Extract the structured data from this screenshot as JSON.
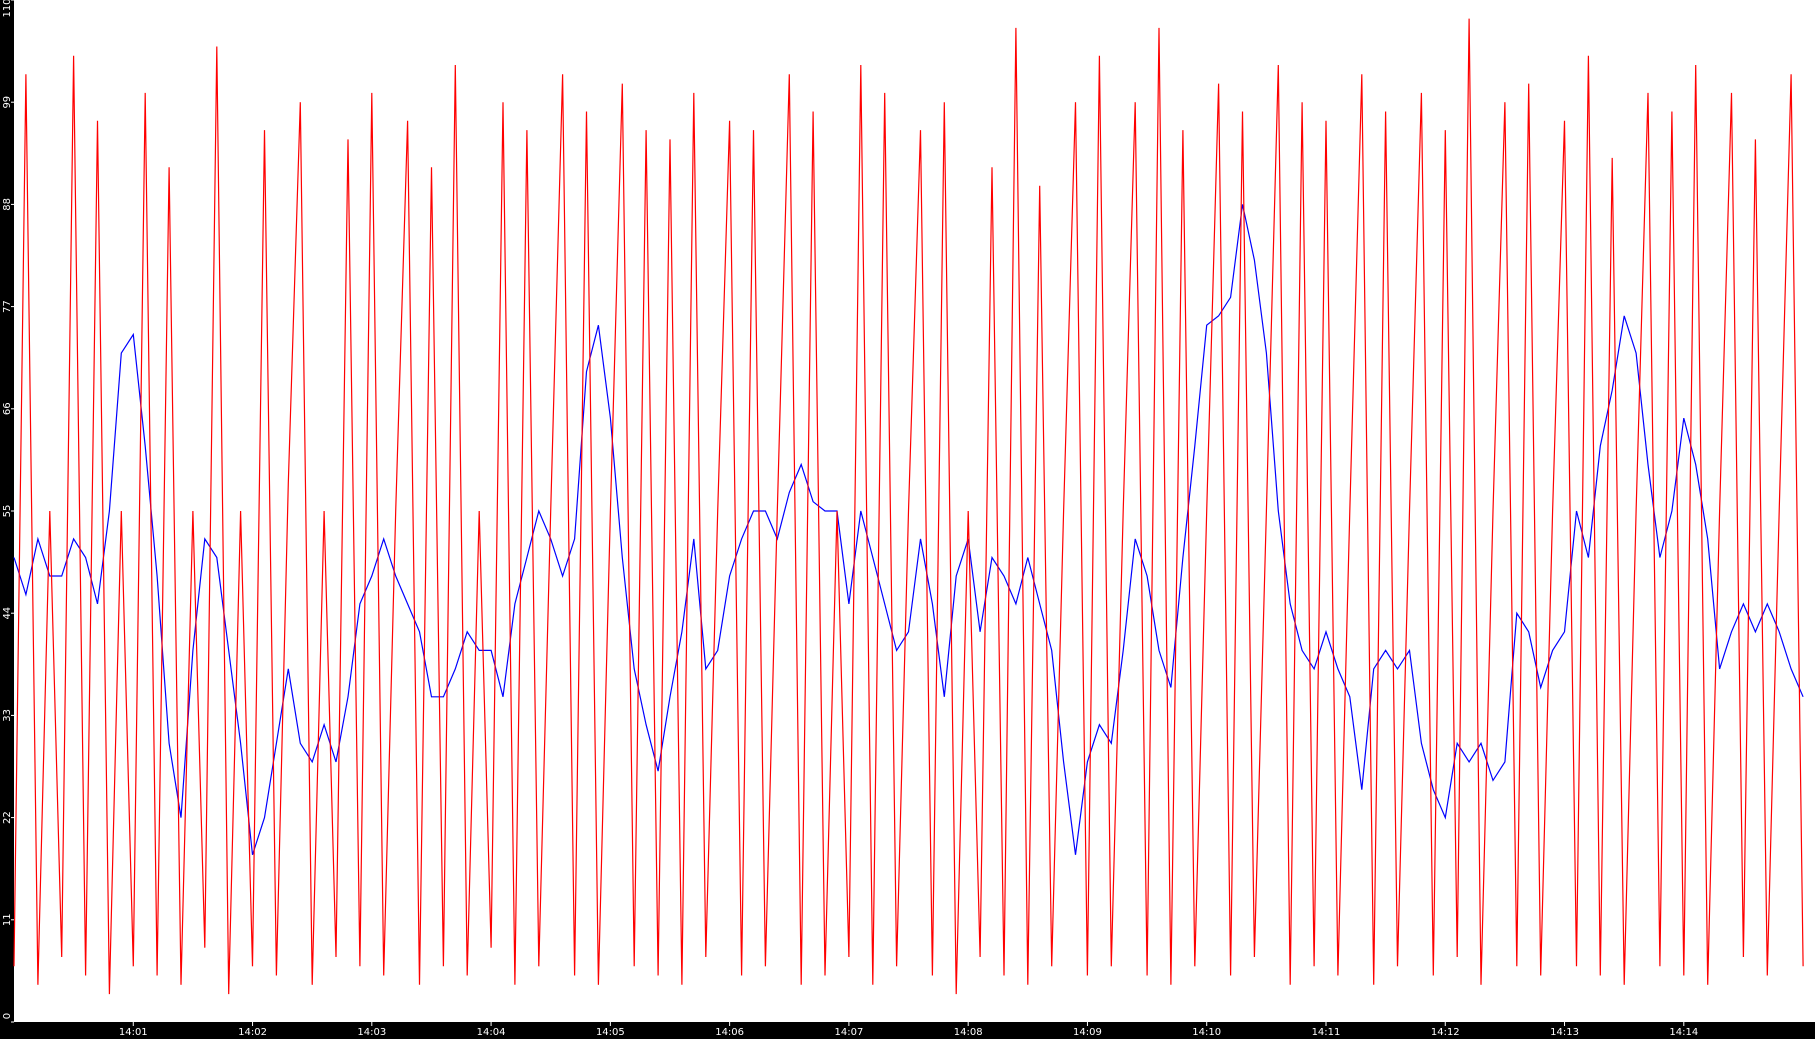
{
  "chart_data": {
    "type": "line",
    "x": [
      0,
      0.1,
      0.2,
      0.3,
      0.4,
      0.5,
      0.6,
      0.7,
      0.8,
      0.9,
      1,
      1.1,
      1.2,
      1.3,
      1.4,
      1.5,
      1.6,
      1.7,
      1.8,
      1.9,
      2,
      2.1,
      2.2,
      2.3,
      2.4,
      2.5,
      2.6,
      2.7,
      2.8,
      2.9,
      3,
      3.1,
      3.2,
      3.3,
      3.4,
      3.5,
      3.6,
      3.7,
      3.8,
      3.9,
      4,
      4.1,
      4.2,
      4.3,
      4.4,
      4.5,
      4.6,
      4.7,
      4.8,
      4.9,
      5,
      5.1,
      5.2,
      5.3,
      5.4,
      5.5,
      5.6,
      5.7,
      5.8,
      5.9,
      6,
      6.1,
      6.2,
      6.3,
      6.4,
      6.5,
      6.6,
      6.7,
      6.8,
      6.9,
      7,
      7.1,
      7.2,
      7.3,
      7.4,
      7.5,
      7.6,
      7.7,
      7.8,
      7.9,
      8,
      8.1,
      8.2,
      8.3,
      8.4,
      8.5,
      8.6,
      8.7,
      8.8,
      8.9,
      9,
      9.1,
      9.2,
      9.3,
      9.4,
      9.5,
      9.6,
      9.7,
      9.8,
      9.9,
      10,
      10.1,
      10.2,
      10.3,
      10.4,
      10.5,
      10.6,
      10.7,
      10.8,
      10.9,
      11,
      11.1,
      11.2,
      11.3,
      11.4,
      11.5,
      11.6,
      11.7,
      11.8,
      11.9,
      12,
      12.1,
      12.2,
      12.3,
      12.4,
      12.5,
      12.6,
      12.7,
      12.8,
      12.9,
      13,
      13.1,
      13.2,
      13.3,
      13.4,
      13.5,
      13.6,
      13.7,
      13.8,
      13.9,
      14,
      14.1,
      14.2,
      14.3,
      14.4,
      14.5,
      14.6,
      14.7,
      14.8,
      14.9,
      15
    ],
    "series": [
      {
        "color": "#0000ff",
        "values": [
          50,
          46,
          52,
          48,
          48,
          52,
          50,
          45,
          55,
          72,
          74,
          62,
          48,
          30,
          22,
          40,
          52,
          50,
          40,
          30,
          18,
          22,
          30,
          38,
          30,
          28,
          32,
          28,
          35,
          45,
          48,
          52,
          48,
          45,
          42,
          35,
          35,
          38,
          42,
          40,
          40,
          35,
          45,
          50,
          55,
          52,
          48,
          52,
          70,
          75,
          65,
          50,
          38,
          32,
          27,
          35,
          42,
          52,
          38,
          40,
          48,
          52,
          55,
          55,
          52,
          57,
          60,
          56,
          55,
          55,
          45,
          55,
          50,
          45,
          40,
          42,
          52,
          45,
          35,
          48,
          52,
          42,
          50,
          48,
          45,
          50,
          45,
          40,
          28,
          18,
          28,
          32,
          30,
          40,
          52,
          48,
          40,
          36,
          50,
          62,
          75,
          76,
          78,
          88,
          82,
          72,
          55,
          45,
          40,
          38,
          42,
          38,
          35,
          25,
          38,
          40,
          38,
          40,
          30,
          25,
          22,
          30,
          28,
          30,
          26,
          28,
          44,
          42,
          36,
          40,
          42,
          55,
          50,
          62,
          68,
          76,
          72,
          60,
          50,
          55,
          65,
          60,
          52,
          38,
          42,
          45,
          42,
          45,
          42,
          38,
          35
        ]
      },
      {
        "color": "#ff0000",
        "values": [
          6,
          102,
          4,
          55,
          7,
          104,
          5,
          97,
          3,
          55,
          6,
          100,
          5,
          92,
          4,
          55,
          8,
          105,
          3,
          55,
          6,
          96,
          5,
          58,
          99,
          4,
          55,
          7,
          95,
          6,
          100,
          5,
          55,
          97,
          4,
          92,
          6,
          103,
          5,
          55,
          8,
          99,
          4,
          96,
          6,
          55,
          102,
          5,
          98,
          4,
          55,
          101,
          6,
          96,
          5,
          95,
          4,
          100,
          7,
          55,
          97,
          5,
          96,
          6,
          55,
          102,
          4,
          98,
          5,
          55,
          7,
          103,
          4,
          100,
          6,
          55,
          96,
          5,
          99,
          3,
          55,
          7,
          92,
          5,
          107,
          4,
          90,
          6,
          55,
          99,
          5,
          104,
          6,
          55,
          99,
          5,
          107,
          4,
          96,
          6,
          55,
          101,
          5,
          98,
          7,
          55,
          103,
          4,
          99,
          6,
          97,
          5,
          55,
          102,
          4,
          98,
          6,
          55,
          100,
          5,
          96,
          7,
          108,
          4,
          55,
          99,
          6,
          101,
          5,
          55,
          97,
          6,
          104,
          5,
          93,
          4,
          55,
          100,
          6,
          98,
          5,
          103,
          4,
          55,
          100,
          7,
          95,
          5,
          55,
          102,
          6
        ]
      }
    ],
    "xlim": [
      0,
      15.1
    ],
    "xticks": [
      {
        "value": 1,
        "label": "14:01"
      },
      {
        "value": 2,
        "label": "14:02"
      },
      {
        "value": 3,
        "label": "14:03"
      },
      {
        "value": 4,
        "label": "14:04"
      },
      {
        "value": 5,
        "label": "14:05"
      },
      {
        "value": 6,
        "label": "14:06"
      },
      {
        "value": 7,
        "label": "14:07"
      },
      {
        "value": 8,
        "label": "14:08"
      },
      {
        "value": 9,
        "label": "14:09"
      },
      {
        "value": 10,
        "label": "14:10"
      },
      {
        "value": 11,
        "label": "14:11"
      },
      {
        "value": 12,
        "label": "14:12"
      },
      {
        "value": 13,
        "label": "14:13"
      },
      {
        "value": 14,
        "label": "14:14"
      }
    ],
    "ylim": [
      0,
      110
    ],
    "yticks": [
      0,
      11,
      22,
      33,
      44,
      55,
      66,
      77,
      88,
      99,
      110
    ]
  }
}
